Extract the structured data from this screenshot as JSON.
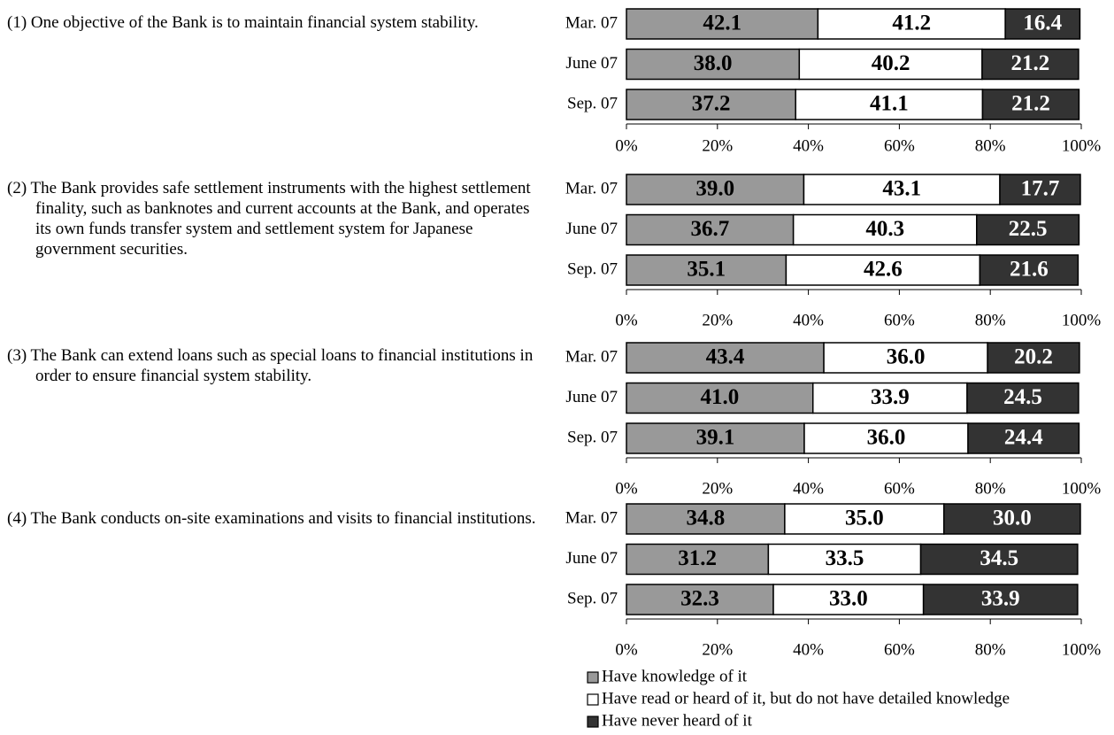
{
  "chart_data": [
    {
      "type": "bar",
      "title": "(1) One objective of the Bank is to maintain financial system stability.",
      "categories": [
        "Mar. 07",
        "June 07",
        "Sep. 07"
      ],
      "series": [
        {
          "color": "#999999",
          "values": [
            42.1,
            38.0,
            37.2
          ],
          "value_labels": [
            "42.1",
            "38.0",
            "37.2"
          ]
        },
        {
          "color": "#ffffff",
          "values": [
            41.2,
            40.2,
            41.1
          ],
          "value_labels": [
            "41.2",
            "40.2",
            "41.1"
          ]
        },
        {
          "color": "#333333",
          "values": [
            16.4,
            21.2,
            21.2
          ],
          "value_labels": [
            "16.4",
            "21.2",
            "21.2"
          ]
        }
      ],
      "xlim": [
        0,
        100
      ],
      "xticks": [
        {
          "value": 0,
          "label": "0%"
        },
        {
          "value": 20,
          "label": "20%"
        },
        {
          "value": 40,
          "label": "40%"
        },
        {
          "value": 60,
          "label": "60%"
        },
        {
          "value": 80,
          "label": "80%"
        },
        {
          "value": 100,
          "label": "100%"
        }
      ]
    },
    {
      "type": "bar",
      "title": "(2) The Bank provides safe settlement instruments with the highest settlement finality, such as banknotes and current accounts at the Bank, and operates its own funds transfer system and settlement system for Japanese government securities.",
      "categories": [
        "Mar. 07",
        "June 07",
        "Sep. 07"
      ],
      "series": [
        {
          "color": "#999999",
          "values": [
            39.0,
            36.7,
            35.1
          ],
          "value_labels": [
            "39.0",
            "36.7",
            "35.1"
          ]
        },
        {
          "color": "#ffffff",
          "values": [
            43.1,
            40.3,
            42.6
          ],
          "value_labels": [
            "43.1",
            "40.3",
            "42.6"
          ]
        },
        {
          "color": "#333333",
          "values": [
            17.7,
            22.5,
            21.6
          ],
          "value_labels": [
            "17.7",
            "22.5",
            "21.6"
          ]
        }
      ],
      "xlim": [
        0,
        100
      ],
      "xticks": [
        {
          "value": 0,
          "label": "0%"
        },
        {
          "value": 20,
          "label": "20%"
        },
        {
          "value": 40,
          "label": "40%"
        },
        {
          "value": 60,
          "label": "60%"
        },
        {
          "value": 80,
          "label": "80%"
        },
        {
          "value": 100,
          "label": "100%"
        }
      ]
    },
    {
      "type": "bar",
      "title": "(3) The Bank can extend loans such as special loans to financial institutions in order to ensure financial system stability.",
      "categories": [
        "Mar. 07",
        "June 07",
        "Sep. 07"
      ],
      "series": [
        {
          "color": "#999999",
          "values": [
            43.4,
            41.0,
            39.1
          ],
          "value_labels": [
            "43.4",
            "41.0",
            "39.1"
          ]
        },
        {
          "color": "#ffffff",
          "values": [
            36.0,
            33.9,
            36.0
          ],
          "value_labels": [
            "36.0",
            "33.9",
            "36.0"
          ]
        },
        {
          "color": "#333333",
          "values": [
            20.2,
            24.5,
            24.4
          ],
          "value_labels": [
            "20.2",
            "24.5",
            "24.4"
          ]
        }
      ],
      "xlim": [
        0,
        100
      ],
      "xticks": [
        {
          "value": 0,
          "label": "0%"
        },
        {
          "value": 20,
          "label": "20%"
        },
        {
          "value": 40,
          "label": "40%"
        },
        {
          "value": 60,
          "label": "60%"
        },
        {
          "value": 80,
          "label": "80%"
        },
        {
          "value": 100,
          "label": "100%"
        }
      ]
    },
    {
      "type": "bar",
      "title": "(4) The Bank conducts on-site examinations and visits to financial institutions.",
      "categories": [
        "Mar. 07",
        "June 07",
        "Sep. 07"
      ],
      "series": [
        {
          "color": "#999999",
          "values": [
            34.8,
            31.2,
            32.3
          ],
          "value_labels": [
            "34.8",
            "31.2",
            "32.3"
          ]
        },
        {
          "color": "#ffffff",
          "values": [
            35.0,
            33.5,
            33.0
          ],
          "value_labels": [
            "35.0",
            "33.5",
            "33.0"
          ]
        },
        {
          "color": "#333333",
          "values": [
            30.0,
            34.5,
            33.9
          ],
          "value_labels": [
            "30.0",
            "34.5",
            "33.9"
          ]
        }
      ],
      "xlim": [
        0,
        100
      ],
      "xticks": [
        {
          "value": 0,
          "label": "0%"
        },
        {
          "value": 20,
          "label": "20%"
        },
        {
          "value": 40,
          "label": "40%"
        },
        {
          "value": 60,
          "label": "60%"
        },
        {
          "value": 80,
          "label": "80%"
        },
        {
          "value": 100,
          "label": "100%"
        }
      ]
    }
  ],
  "legend": [
    {
      "name": "Have knowledge of it",
      "color": "#999999"
    },
    {
      "name": "Have read or heard of it, but do not have detailed knowledge",
      "color": "#ffffff"
    },
    {
      "name": "Have never heard of it",
      "color": "#333333"
    }
  ]
}
